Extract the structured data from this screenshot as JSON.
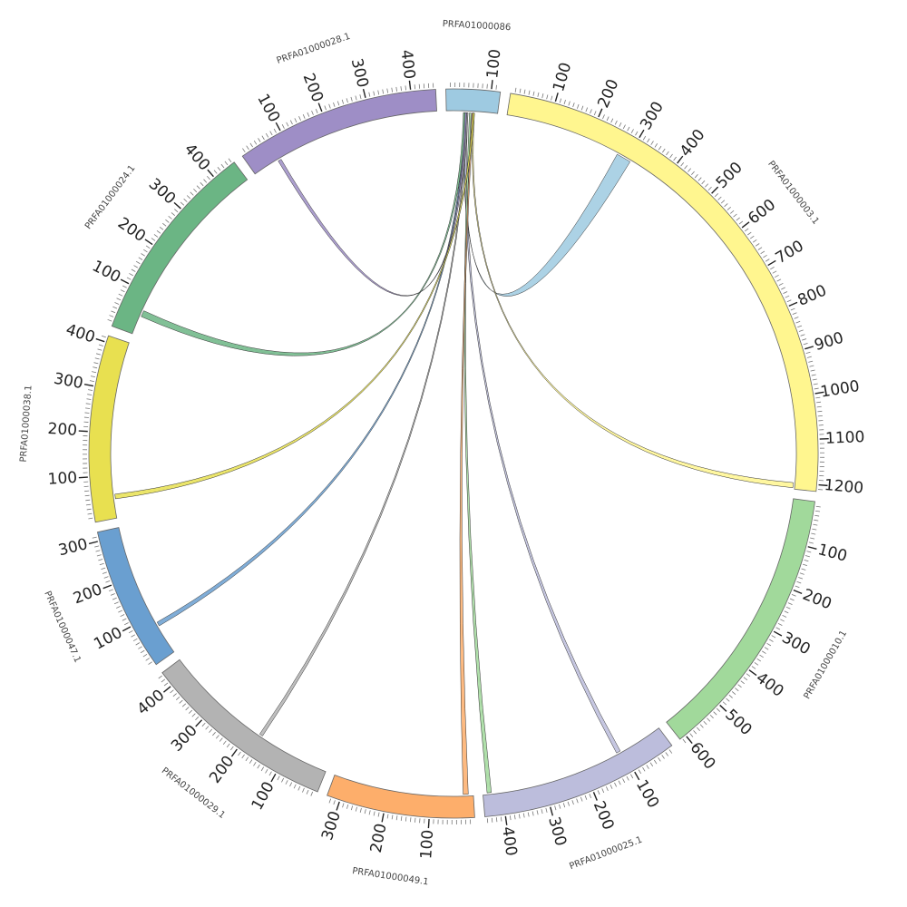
{
  "chart_data": {
    "type": "chord",
    "segments": [
      {
        "id": "PRFA01000086",
        "label": "PRFA01000086",
        "length": 120,
        "color": "#9ecae1",
        "ticks": [
          100
        ]
      },
      {
        "id": "PRFA01000003.1",
        "label": "PRFA01000003.1",
        "length": 1215,
        "color": "#fff68f",
        "ticks": [
          100,
          200,
          300,
          400,
          500,
          600,
          700,
          800,
          900,
          1000,
          1100,
          1200
        ]
      },
      {
        "id": "PRFA01000010.1",
        "label": "PRFA01000010.1",
        "length": 615,
        "color": "#a1d99b",
        "ticks": [
          100,
          200,
          300,
          400,
          500,
          600
        ]
      },
      {
        "id": "PRFA01000025.1",
        "label": "PRFA01000025.1",
        "length": 445,
        "color": "#bcbddc",
        "ticks": [
          100,
          200,
          300,
          400
        ]
      },
      {
        "id": "PRFA01000049.1",
        "label": "PRFA01000049.1",
        "length": 330,
        "color": "#fdae6b",
        "ticks": [
          100,
          200,
          300
        ]
      },
      {
        "id": "PRFA01000029.1",
        "label": "PRFA01000029.1",
        "length": 435,
        "color": "#b3b3b3",
        "ticks": [
          100,
          200,
          300,
          400
        ]
      },
      {
        "id": "PRFA01000047.1",
        "label": "PRFA01000047.1",
        "length": 320,
        "color": "#6a9fd0",
        "ticks": [
          100,
          200,
          300
        ]
      },
      {
        "id": "PRFA01000038.1",
        "label": "PRFA01000038.1",
        "length": 415,
        "color": "#e8e050",
        "ticks": [
          100,
          200,
          300,
          400
        ]
      },
      {
        "id": "PRFA01000024.1",
        "label": "PRFA01000024.1",
        "length": 455,
        "color": "#6bb584",
        "ticks": [
          100,
          200,
          300,
          400
        ]
      },
      {
        "id": "PRFA01000028.1",
        "label": "PRFA01000028.1",
        "length": 455,
        "color": "#9e8ec6",
        "ticks": [
          100,
          200,
          300,
          400
        ]
      }
    ],
    "links": [
      {
        "source": "PRFA01000086",
        "source_range": [
          42,
          46
        ],
        "target": "PRFA01000003.1",
        "target_range": [
          275,
          310
        ],
        "color": "#9ecae1"
      },
      {
        "source": "PRFA01000086",
        "source_range": [
          63,
          66
        ],
        "target": "PRFA01000003.1",
        "target_range": [
          1200,
          1212
        ],
        "color": "#fff68f"
      },
      {
        "source": "PRFA01000086",
        "source_range": [
          45,
          50
        ],
        "target": "PRFA01000025.1",
        "target_range": [
          105,
          115
        ],
        "color": "#bcbddc"
      },
      {
        "source": "PRFA01000086",
        "source_range": [
          54,
          58
        ],
        "target": "PRFA01000025.1",
        "target_range": [
          425,
          435
        ],
        "color": "#a1d99b"
      },
      {
        "source": "PRFA01000086",
        "source_range": [
          60,
          63
        ],
        "target": "PRFA01000049.1",
        "target_range": [
          12,
          24
        ],
        "color": "#fdae6b"
      },
      {
        "source": "PRFA01000086",
        "source_range": [
          48,
          51
        ],
        "target": "PRFA01000029.1",
        "target_range": [
          170,
          178
        ],
        "color": "#b3b3b3"
      },
      {
        "source": "PRFA01000086",
        "source_range": [
          44,
          47
        ],
        "target": "PRFA01000047.1",
        "target_range": [
          70,
          80
        ],
        "color": "#6a9fd0"
      },
      {
        "source": "PRFA01000086",
        "source_range": [
          62,
          66
        ],
        "target": "PRFA01000038.1",
        "target_range": [
          45,
          56
        ],
        "color": "#e8e050"
      },
      {
        "source": "PRFA01000086",
        "source_range": [
          40,
          45
        ],
        "target": "PRFA01000024.1",
        "target_range": [
          45,
          60
        ],
        "color": "#6bb584"
      },
      {
        "source": "PRFA01000086",
        "source_range": [
          44,
          48
        ],
        "target": "PRFA01000028.1",
        "target_range": [
          62,
          70
        ],
        "color": "#9e8ec6"
      }
    ]
  }
}
